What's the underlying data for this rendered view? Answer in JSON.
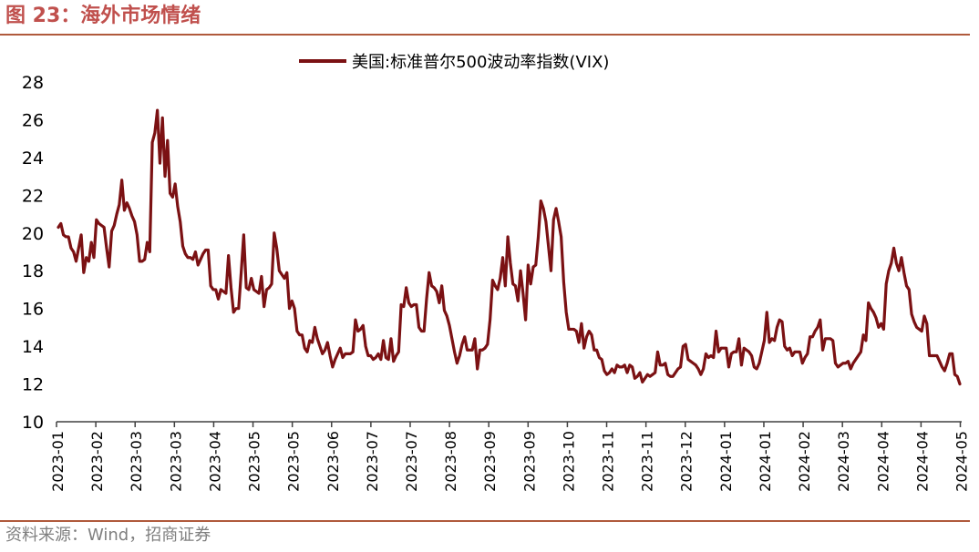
{
  "figure": {
    "title": "图 23：海外市场情绪",
    "source": "资料来源：Wind，招商证券"
  },
  "chart_data": {
    "type": "line",
    "title": "",
    "xlabel": "",
    "ylabel": "",
    "ylim": [
      10,
      28
    ],
    "yticks": [
      "10",
      "12",
      "14",
      "16",
      "18",
      "20",
      "22",
      "24",
      "26",
      "28"
    ],
    "xticks": [
      "2023-01",
      "2023-02",
      "2023-03",
      "2023-03",
      "2023-04",
      "2023-05",
      "2023-05",
      "2023-06",
      "2023-07",
      "2023-07",
      "2023-08",
      "2023-09",
      "2023-09",
      "2023-10",
      "2023-11",
      "2023-11",
      "2023-12",
      "2024-01",
      "2024-01",
      "2024-02",
      "2024-03",
      "2024-04",
      "2024-04",
      "2024-05"
    ],
    "grid": false,
    "legend": "top-center",
    "color": "#7b1113",
    "series": [
      {
        "name": "美国:标准普尔500波动率指数(VIX)",
        "values": [
          20.3,
          20.5,
          19.9,
          19.8,
          19.8,
          19.2,
          19.0,
          18.5,
          19.2,
          19.9,
          17.9,
          18.7,
          18.5,
          19.5,
          18.7,
          20.7,
          20.5,
          20.4,
          20.3,
          19.2,
          18.2,
          20.1,
          20.4,
          21.0,
          21.5,
          22.8,
          21.2,
          21.6,
          21.3,
          20.9,
          20.6,
          19.9,
          18.5,
          18.5,
          18.6,
          19.5,
          19.0,
          24.8,
          25.3,
          26.5,
          23.7,
          26.1,
          23.0,
          24.9,
          22.1,
          21.9,
          22.6,
          21.4,
          20.6,
          19.3,
          18.9,
          18.7,
          18.7,
          18.6,
          19.0,
          18.3,
          18.6,
          18.9,
          19.1,
          19.1,
          17.2,
          17.0,
          17.0,
          16.5,
          17.0,
          16.9,
          16.8,
          18.8,
          17.1,
          15.8,
          16.0,
          16.0,
          17.9,
          19.9,
          17.1,
          17.0,
          17.6,
          17.0,
          16.9,
          16.8,
          17.7,
          16.1,
          17.0,
          17.1,
          17.3,
          20.0,
          19.2,
          18.0,
          17.8,
          17.6,
          17.9,
          16.0,
          16.4,
          16.0,
          14.8,
          14.6,
          14.6,
          13.9,
          13.7,
          14.3,
          14.2,
          15.0,
          14.4,
          14.0,
          13.6,
          13.8,
          14.2,
          13.5,
          12.9,
          13.3,
          13.6,
          13.9,
          13.4,
          13.6,
          13.6,
          13.6,
          13.7,
          15.4,
          14.8,
          14.9,
          15.1,
          14.0,
          13.5,
          13.5,
          13.3,
          13.4,
          13.6,
          13.3,
          14.3,
          13.4,
          13.3,
          14.4,
          13.2,
          13.5,
          13.7,
          16.2,
          16.1,
          17.1,
          16.3,
          16.1,
          16.2,
          16.2,
          15.0,
          14.8,
          14.8,
          16.5,
          17.9,
          17.2,
          17.1,
          16.9,
          16.3,
          17.2,
          15.9,
          15.6,
          15.1,
          14.4,
          13.7,
          13.1,
          13.5,
          14.1,
          14.5,
          13.8,
          13.8,
          13.8,
          14.4,
          12.8,
          13.8,
          13.8,
          13.9,
          14.1,
          15.4,
          17.5,
          17.2,
          17.0,
          17.6,
          18.7,
          17.2,
          19.8,
          18.4,
          17.3,
          17.2,
          16.4,
          18.0,
          16.8,
          15.4,
          18.3,
          17.3,
          18.2,
          18.3,
          19.8,
          21.7,
          21.3,
          20.6,
          19.3,
          18.0,
          20.7,
          21.3,
          20.6,
          19.8,
          17.4,
          15.8,
          14.9,
          14.9,
          14.9,
          14.8,
          14.2,
          15.2,
          13.9,
          14.5,
          14.8,
          14.6,
          13.8,
          13.8,
          13.4,
          13.3,
          12.7,
          12.5,
          12.6,
          12.8,
          12.6,
          13.0,
          12.9,
          12.9,
          13.0,
          12.6,
          13.0,
          12.9,
          12.3,
          12.4,
          12.6,
          12.1,
          12.3,
          12.5,
          12.4,
          12.5,
          12.6,
          13.7,
          13.0,
          13.0,
          13.1,
          12.5,
          12.4,
          12.4,
          12.6,
          12.8,
          12.9,
          14.0,
          14.1,
          13.3,
          13.2,
          13.1,
          13.0,
          12.8,
          12.5,
          12.8,
          13.6,
          13.4,
          13.5,
          13.4,
          14.8,
          13.7,
          13.9,
          13.9,
          13.9,
          12.9,
          13.6,
          13.7,
          13.7,
          14.4,
          13.0,
          13.9,
          13.8,
          13.7,
          13.5,
          12.9,
          12.8,
          13.1,
          13.7,
          14.3,
          15.8,
          14.2,
          14.4,
          14.3,
          15.0,
          15.4,
          15.3,
          14.0,
          13.8,
          13.9,
          13.5,
          13.7,
          13.7,
          13.7,
          13.1,
          13.4,
          13.6,
          14.5,
          14.5,
          14.8,
          15.0,
          15.4,
          13.8,
          14.4,
          14.4,
          14.4,
          14.3,
          13.1,
          12.9,
          13.0,
          13.1,
          13.1,
          13.2,
          12.8,
          13.1,
          13.3,
          13.5,
          13.7,
          14.6,
          14.3,
          16.3,
          16.0,
          15.8,
          15.5,
          15.0,
          15.2,
          14.9,
          17.3,
          18.0,
          18.4,
          19.2,
          18.4,
          18.0,
          18.7,
          17.9,
          17.2,
          17.0,
          15.7,
          15.3,
          15.0,
          14.9,
          14.8,
          15.6,
          15.2,
          13.5,
          13.5,
          13.5,
          13.5,
          13.2,
          12.9,
          12.7,
          13.1,
          13.6,
          13.6,
          12.5,
          12.4,
          12.0
        ]
      }
    ]
  }
}
